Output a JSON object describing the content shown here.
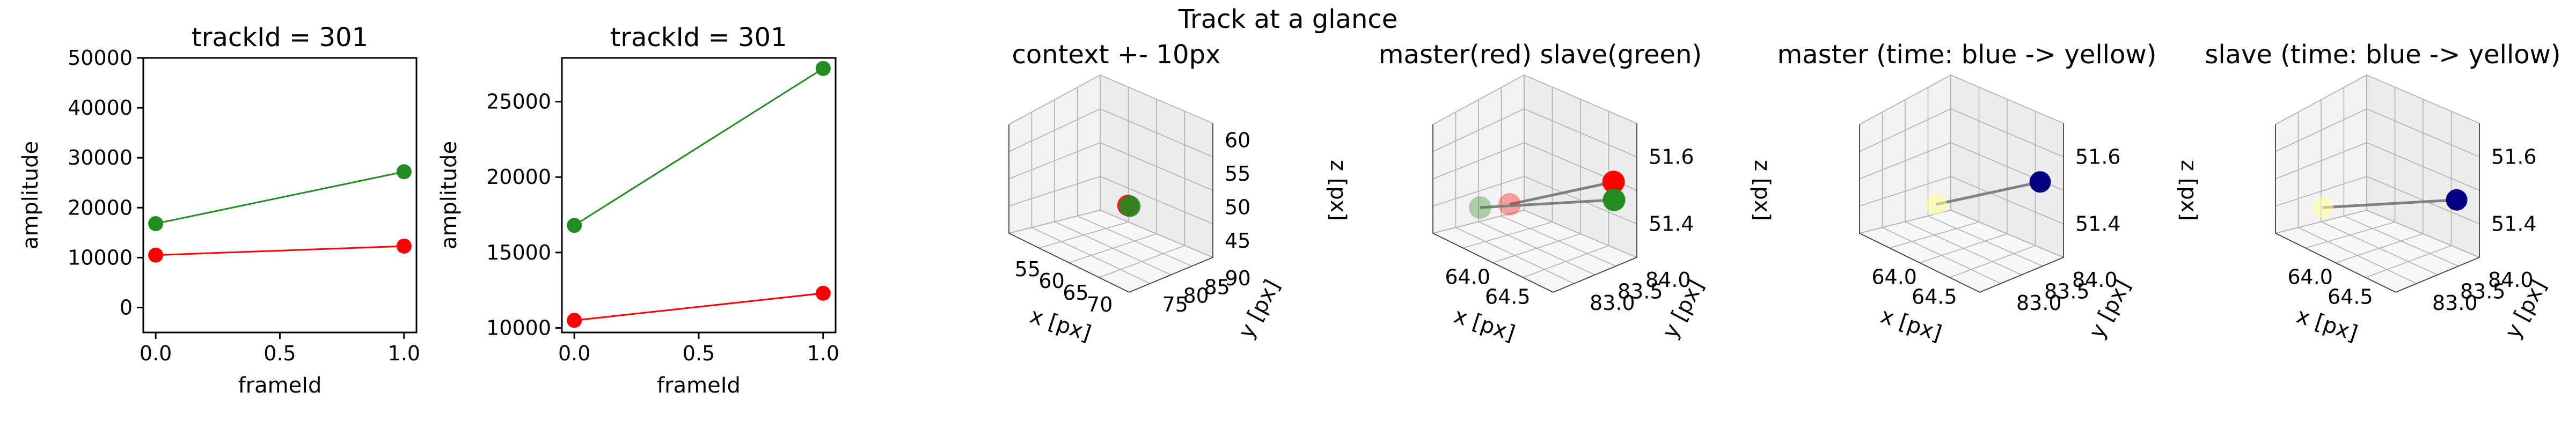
{
  "figure": {
    "suptitle": "Track at a glance"
  },
  "chart_data": [
    {
      "type": "line",
      "title": "trackId = 301",
      "xlabel": "frameId",
      "ylabel": "amplitude",
      "xlim": [
        -0.05,
        1.05
      ],
      "ylim": [
        -5000,
        50000
      ],
      "xticks": [
        "0.0",
        "0.5",
        "1.0"
      ],
      "yticks": [
        "0",
        "10000",
        "20000",
        "30000",
        "40000",
        "50000"
      ],
      "x": [
        0.0,
        1.0
      ],
      "series": [
        {
          "values": [
            16800,
            27200
          ],
          "color": "#228b22"
        },
        {
          "values": [
            10500,
            12300
          ],
          "color": "#ff0000"
        }
      ]
    },
    {
      "type": "line",
      "title": "trackId = 301",
      "xlabel": "frameId",
      "ylabel": "amplitude",
      "xlim": [
        -0.05,
        1.05
      ],
      "ylim": [
        9700,
        27900
      ],
      "xticks": [
        "0.0",
        "0.5",
        "1.0"
      ],
      "yticks": [
        "10000",
        "15000",
        "20000",
        "25000"
      ],
      "x": [
        0.0,
        1.0
      ],
      "series": [
        {
          "values": [
            16800,
            27200
          ],
          "color": "#228b22"
        },
        {
          "values": [
            10500,
            12300
          ],
          "color": "#ff0000"
        }
      ]
    },
    {
      "type": "scatter",
      "title": "context +- 10px",
      "xlabel": "x [px]",
      "ylabel": "y [px]",
      "zlabel": "z [px]",
      "xticks": [
        "55",
        "60",
        "65",
        "70"
      ],
      "yticks": [
        "75",
        "80",
        "85",
        "90"
      ],
      "zticks": [
        "45",
        "50",
        "55",
        "60"
      ],
      "points": [
        {
          "x": 64.3,
          "y": 83.4,
          "z": 51.5,
          "color": "#ff0000"
        },
        {
          "x": 64.5,
          "y": 83.6,
          "z": 51.4,
          "color": "#228b22"
        }
      ]
    },
    {
      "type": "scatter",
      "title": "master(red) slave(green)",
      "xlabel": "x [px]",
      "ylabel": "y [px]",
      "zlabel": "z [px]",
      "xticks": [
        "64.0",
        "64.5"
      ],
      "yticks": [
        "83.0",
        "83.5",
        "84.0"
      ],
      "zticks": [
        "51.4",
        "51.6"
      ],
      "series": [
        {
          "name": "master",
          "color": "#ff0000",
          "points": [
            {
              "x": 64.1,
              "y": 83.3,
              "z": 51.45
            },
            {
              "x": 64.6,
              "y": 84.1,
              "z": 51.6
            }
          ]
        },
        {
          "name": "slave",
          "color": "#228b22",
          "points": [
            {
              "x": 63.9,
              "y": 83.2,
              "z": 51.4
            },
            {
              "x": 64.65,
              "y": 84.0,
              "z": 51.55
            }
          ]
        }
      ]
    },
    {
      "type": "scatter",
      "title": "master (time: blue -> yellow)",
      "xlabel": "x [px]",
      "ylabel": "y [px]",
      "zlabel": "z [px]",
      "xticks": [
        "64.0",
        "64.5"
      ],
      "yticks": [
        "83.0",
        "83.5",
        "84.0"
      ],
      "zticks": [
        "51.4",
        "51.6"
      ],
      "points": [
        {
          "x": 64.1,
          "y": 83.3,
          "z": 51.45,
          "color": "#ffff99"
        },
        {
          "x": 64.6,
          "y": 84.1,
          "z": 51.6,
          "color": "#000080"
        }
      ]
    },
    {
      "type": "scatter",
      "title": "slave (time: blue -> yellow)",
      "xlabel": "x [px]",
      "ylabel": "y [px]",
      "zlabel": "z [px]",
      "xticks": [
        "64.0",
        "64.5"
      ],
      "yticks": [
        "83.0",
        "83.5",
        "84.0"
      ],
      "zticks": [
        "51.4",
        "51.6"
      ],
      "points": [
        {
          "x": 63.9,
          "y": 83.2,
          "z": 51.4,
          "color": "#ffff99"
        },
        {
          "x": 64.65,
          "y": 84.0,
          "z": 51.55,
          "color": "#000080"
        }
      ]
    }
  ]
}
